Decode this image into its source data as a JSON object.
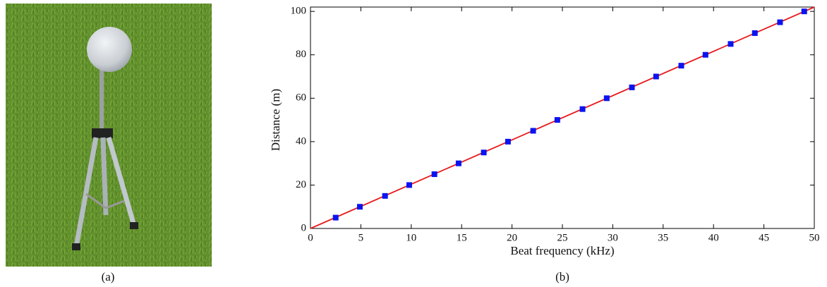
{
  "captions": [
    "(a)",
    "(b)"
  ],
  "chart_data": {
    "type": "scatter",
    "xlabel": "Beat frequency (kHz)",
    "ylabel": "Distance (m)",
    "xlim": [
      0,
      50
    ],
    "ylim": [
      0,
      102
    ],
    "xticks": [
      0,
      5,
      10,
      15,
      20,
      25,
      30,
      35,
      40,
      45,
      50
    ],
    "yticks": [
      0,
      20,
      40,
      60,
      80,
      100
    ],
    "series": [
      {
        "type": "line",
        "color": "#e8191c",
        "x": [
          0,
          50
        ],
        "values": [
          0,
          102
        ]
      },
      {
        "type": "scatter",
        "color": "#0a14f0",
        "x": [
          2.5,
          4.9,
          7.4,
          9.8,
          12.3,
          14.7,
          17.2,
          19.6,
          22.1,
          24.5,
          27.0,
          29.4,
          31.9,
          34.3,
          36.8,
          39.2,
          41.7,
          44.1,
          46.6,
          49.0
        ],
        "values": [
          5,
          10,
          15,
          20,
          25,
          30,
          35,
          40,
          45,
          50,
          55,
          60,
          65,
          70,
          75,
          80,
          85,
          90,
          95,
          100
        ]
      }
    ]
  }
}
